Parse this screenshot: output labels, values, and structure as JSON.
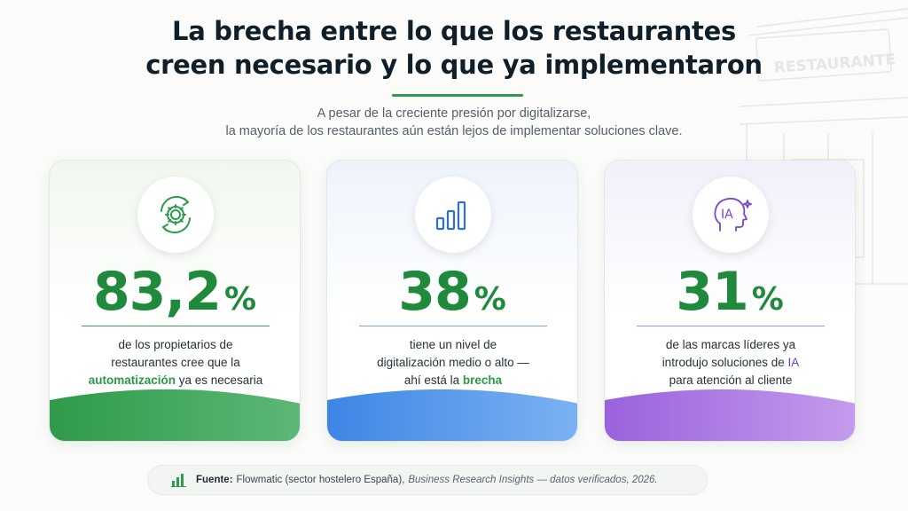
{
  "header": {
    "title_line1": "La brecha entre lo que los restaurantes",
    "title_line2": "creen necesario y lo que ya implementaron",
    "subtitle_line1": "A pesar de la creciente presión por digitalizarse,",
    "subtitle_line2": "la mayoría de los restaurantes aún están lejos de implementar soluciones clave."
  },
  "background": {
    "store_sign": "RESTAURANTE"
  },
  "colors": {
    "accent_green": "#1f8a3c",
    "accent_blue": "#4a8fe0",
    "accent_purple": "#9b6ad8"
  },
  "cards": [
    {
      "icon": "gear-sync-icon",
      "value": "83,2",
      "unit": "%",
      "line1": "de los propietarios de",
      "line2": "restaurantes cree que la",
      "line3_highlight": "automatización",
      "line3_rest": " ya es necesaria"
    },
    {
      "icon": "bar-chart-icon",
      "value": "38",
      "unit": "%",
      "line1": "tiene un nivel de",
      "line2": "digitalización medio o alto —",
      "line3_pre": "ahí está la ",
      "line3_highlight": "brecha"
    },
    {
      "icon": "ai-head-icon",
      "icon_text": "IA",
      "value": "31",
      "unit": "%",
      "line1": "de las marcas líderes ya",
      "line2_pre": "introdujo soluciones de ",
      "line2_highlight": "IA",
      "line3": "para atención al cliente"
    }
  ],
  "footer": {
    "label": "Fuente:",
    "source_a": "Flowmatic (sector hostelero España),",
    "source_b": "Business Research Insights — datos verificados, 2026."
  }
}
